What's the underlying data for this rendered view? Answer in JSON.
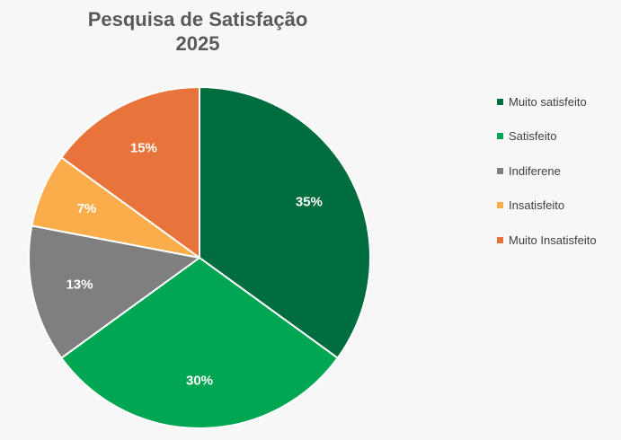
{
  "chart_data": {
    "type": "pie",
    "title_lines": [
      "Pesquisa de Satisfação",
      "2025"
    ],
    "legend_position": "right",
    "slices": [
      {
        "label": "Muito satisfeito",
        "value": 35,
        "display": "35%",
        "color": "#006d3f"
      },
      {
        "label": "Satisfeito",
        "value": 30,
        "display": "30%",
        "color": "#00a651"
      },
      {
        "label": "Indiferene",
        "value": 13,
        "display": "13%",
        "color": "#7f7f7f"
      },
      {
        "label": "Insatisfeito",
        "value": 7,
        "display": "7%",
        "color": "#fbad4c"
      },
      {
        "label": "Muito Insatisfeito",
        "value": 15,
        "display": "15%",
        "color": "#e8743b"
      }
    ]
  }
}
